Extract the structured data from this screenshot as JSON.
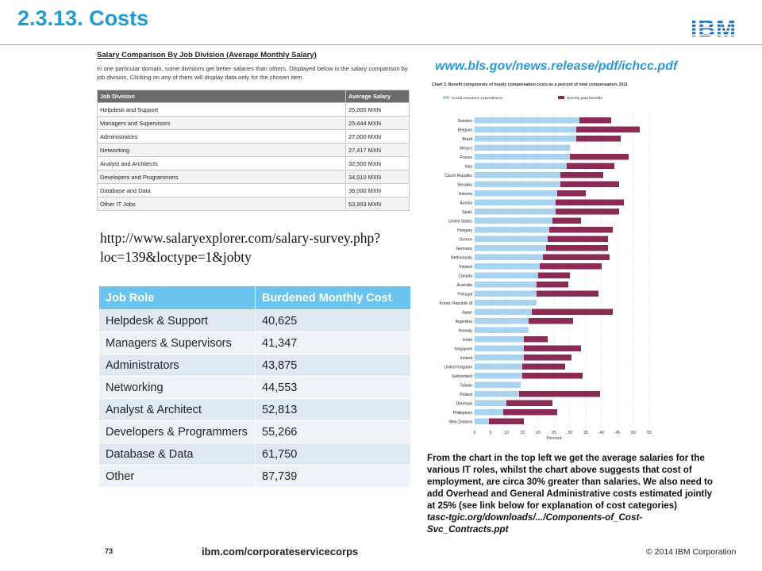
{
  "slide": {
    "title": "2.3.13. Costs",
    "logo_text": "IBM"
  },
  "salary_table_image": {
    "title": "Salary Comparison By Job Division (Average Monthly Salary)",
    "intro": "In one particular domain, some divisions get better salaries than others. Displayed below is the salary comparison by job division, Clicking on any of them will display data only for the chosen item.",
    "headers": [
      "Job Division",
      "Average Salary"
    ],
    "rows": [
      [
        "Helpdesk and Support",
        "25,000 MXN"
      ],
      [
        "Managers and Supervisors",
        "25,444 MXN"
      ],
      [
        "Administrators",
        "27,000 MXN"
      ],
      [
        "Networking",
        "27,417 MXN"
      ],
      [
        "Analyst and Architects",
        "32,500 MXN"
      ],
      [
        "Developers and Programmers",
        "34,010 MXN"
      ],
      [
        "Database and Data",
        "38,000 MXN"
      ],
      [
        "Other IT Jobs",
        "53,993 MXN"
      ]
    ]
  },
  "salary_url": "http://www.salaryexplorer.com/salary-survey.php?loc=139&loctype=1&jobty",
  "cost_table": {
    "headers": [
      "Job Role",
      "Burdened Monthly Cost"
    ],
    "rows": [
      [
        "Helpdesk & Support",
        "40,625"
      ],
      [
        "Managers & Supervisors",
        "41,347"
      ],
      [
        "Administrators",
        "43,875"
      ],
      [
        "Networking",
        "44,553"
      ],
      [
        "Analyst & Architect",
        "52,813"
      ],
      [
        "Developers & Programmers",
        "55,266"
      ],
      [
        "Database & Data",
        "61,750"
      ],
      [
        "Other",
        "87,739"
      ]
    ]
  },
  "bls_url": "www.bls.gov/news.release/pdf/ichcc.pdf",
  "chart_data": {
    "type": "bar",
    "title": "Chart 3. Benefit components of hourly compensation costs as a percent of total compensation, 2011",
    "xlabel": "Percent",
    "xlim": [
      0,
      55
    ],
    "xticks": [
      0,
      5,
      10,
      15,
      20,
      25,
      30,
      35,
      40,
      45,
      50,
      55
    ],
    "categories": [
      "Sweden",
      "Belgium",
      "Brazil",
      "Mexico",
      "France",
      "Italy",
      "Czech Republic",
      "Slovakia",
      "Estonia",
      "Austria",
      "Spain",
      "United States",
      "Hungary",
      "Greece",
      "Germany",
      "Netherlands",
      "Finland",
      "Canada",
      "Australia",
      "Portugal",
      "Korea, Republic of",
      "Japan",
      "Argentina",
      "Norway",
      "Israel",
      "Singapore",
      "Ireland",
      "United Kingdom",
      "Switzerland",
      "Taiwan",
      "Poland",
      "Denmark",
      "Philippines",
      "New Zealand"
    ],
    "series": [
      {
        "name": "Social insurance expenditures",
        "color": "#a8d3ef",
        "values": [
          33,
          32,
          32,
          30,
          30,
          29,
          27,
          27,
          26,
          25.5,
          25.5,
          24.5,
          23.5,
          23,
          22.5,
          21.5,
          20.5,
          20,
          19.5,
          19.5,
          19.5,
          18,
          17,
          17,
          15.5,
          15.5,
          15.5,
          15,
          15,
          14.5,
          14,
          10,
          9,
          4.5
        ]
      },
      {
        "name": "Directly-paid benefits",
        "color": "#8b2a55",
        "values": [
          10,
          20,
          14,
          0,
          18.5,
          15,
          13.5,
          18.5,
          9,
          21.5,
          20,
          9,
          20,
          19,
          19.5,
          21,
          19.5,
          10,
          10,
          19.5,
          0,
          25.5,
          14,
          0,
          7.5,
          18,
          15,
          13.5,
          19,
          0,
          25.5,
          14.5,
          17,
          11
        ]
      }
    ]
  },
  "note": {
    "text": "From the chart in the top left we get the average salaries for the various IT roles, whilst the chart above suggests that cost of employment, are circa 30% greater than salaries. We also need to add Overhead and General Administrative costs estimated jointly at 25% (see link below for explanation of cost categories)",
    "ref": "tasc-tgic.org/downloads/.../Components-of_Cost-Svc_Contracts.ppt"
  },
  "footer": {
    "page_number": "73",
    "url": "ibm.com/corporateservicecorps",
    "copyright": "© 2014 IBM Corporation"
  }
}
